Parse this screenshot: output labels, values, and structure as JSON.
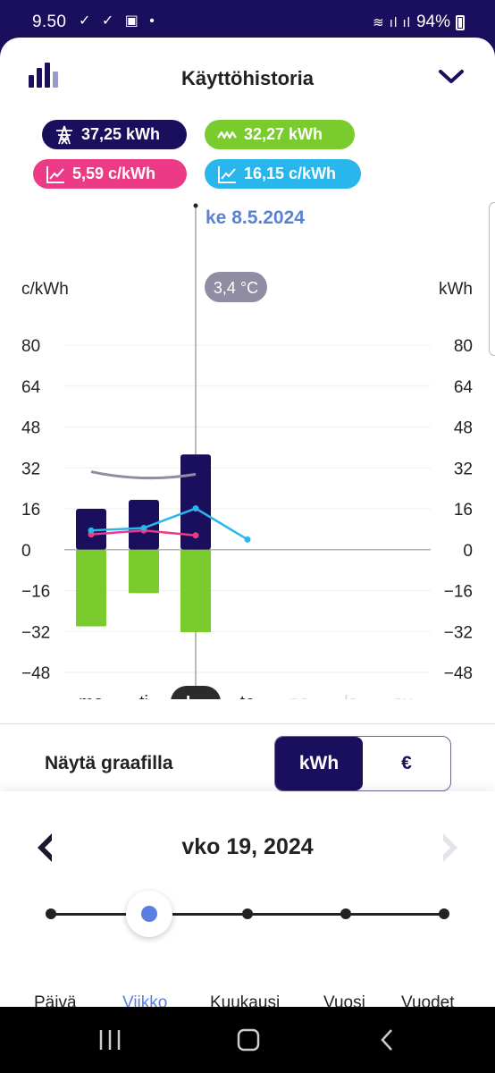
{
  "status_bar": {
    "time": "9.50",
    "icons": "✓ ✓ ▣ •",
    "signal": "≋ ıl ıl",
    "battery": "94%"
  },
  "header": {
    "title": "Käyttöhistoria"
  },
  "summary": {
    "consumption": "37,25 kWh",
    "production": "32,27 kWh",
    "price_pink": "5,59 c/kWh",
    "price_blue": "16,15 c/kWh"
  },
  "chart_data": {
    "type": "bar",
    "categories": [
      "ma",
      "ti",
      "ke",
      "to",
      "pe",
      "la",
      "su"
    ],
    "selected_category": "ke",
    "selected_date": "ke 8.5.2024",
    "temperature": "3,4 °C",
    "left_unit": "c/kWh",
    "right_unit": "kWh",
    "yticks": [
      "80",
      "64",
      "48",
      "32",
      "16",
      "0",
      "−16",
      "−32",
      "−48"
    ],
    "ylim": [
      -48,
      80
    ],
    "series": [
      {
        "values": [
          16,
          19.5,
          37.25,
          null,
          null,
          null,
          null
        ],
        "color": "#1a0f5c"
      },
      {
        "values": [
          -30,
          -17,
          -32.27,
          null,
          null,
          null,
          null
        ],
        "color": "#7acb2d"
      },
      {
        "values": [
          6,
          7.5,
          5.59,
          null,
          null,
          null,
          null
        ],
        "color": "#ec3a86"
      },
      {
        "values": [
          7.5,
          8.5,
          16.15,
          4,
          null,
          null,
          null
        ],
        "color": "#29b6ec"
      },
      {
        "values": [
          30.5,
          27.5,
          29.5,
          null,
          null,
          null,
          null
        ],
        "color": "#8f8ca3"
      }
    ]
  },
  "display": {
    "label": "Näytä graafilla",
    "options": [
      "kWh",
      "€"
    ],
    "selected": "kWh"
  },
  "period": {
    "week_label": "vko 19, 2024",
    "options": [
      "Päivä",
      "Viikko",
      "Kuukausi",
      "Vuosi",
      "Vuodet"
    ],
    "selected": "Viikko"
  }
}
